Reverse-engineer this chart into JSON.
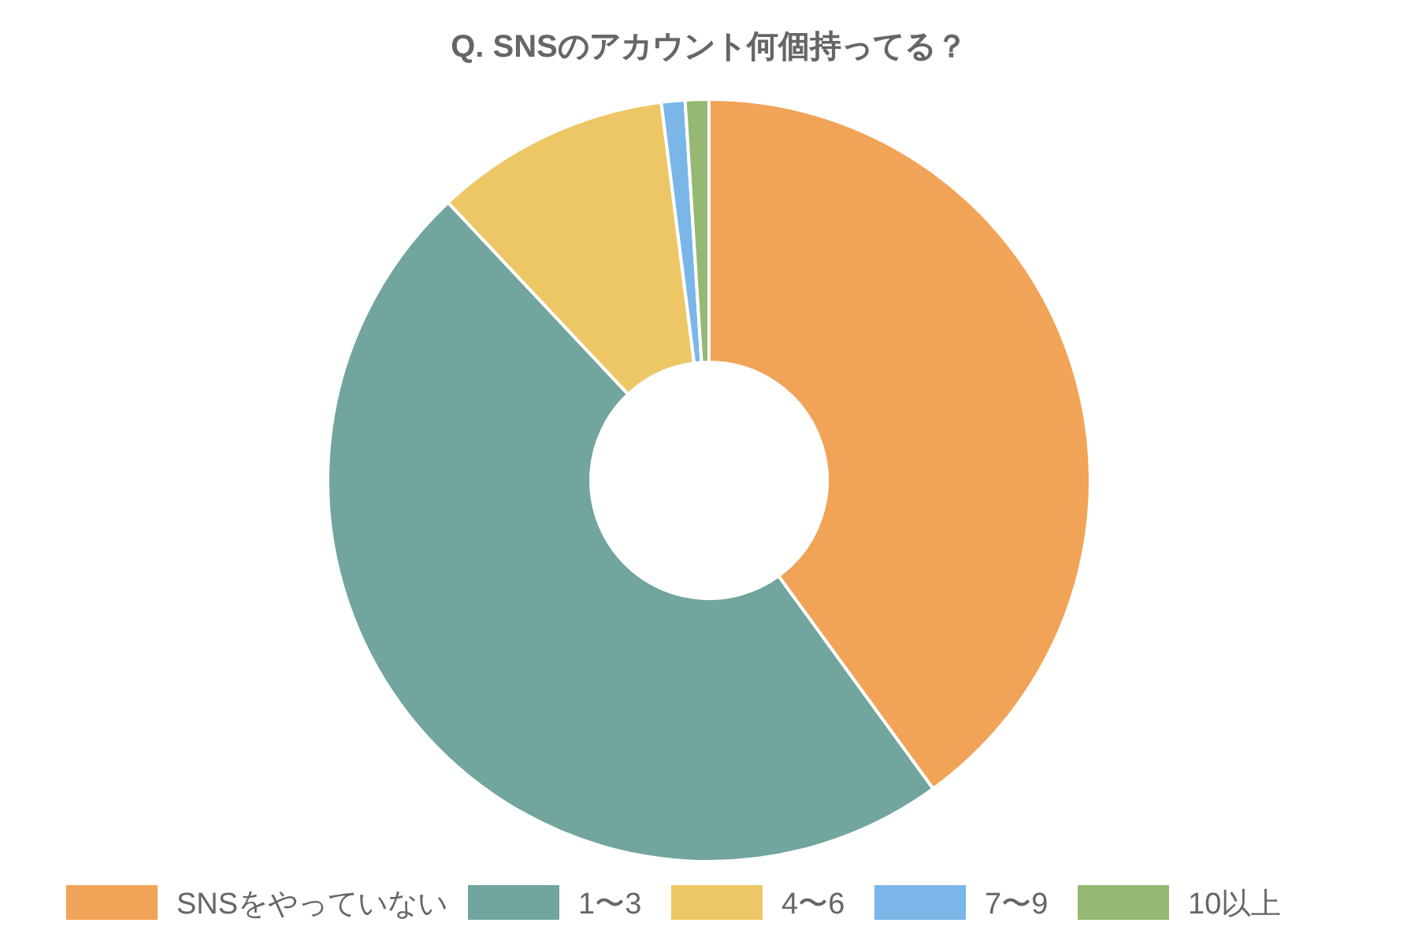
{
  "chart_data": {
    "type": "donut",
    "title": "Q. SNSのアカウント何個持ってる？",
    "categories": [
      "SNSをやっていない",
      "1〜3",
      "4〜6",
      "7〜9",
      "10以上"
    ],
    "values": [
      40,
      48,
      10,
      1,
      1
    ],
    "colors": [
      "#f1a357",
      "#71a59e",
      "#edc766",
      "#7ab6e7",
      "#95b872"
    ],
    "legend": "bottom"
  }
}
